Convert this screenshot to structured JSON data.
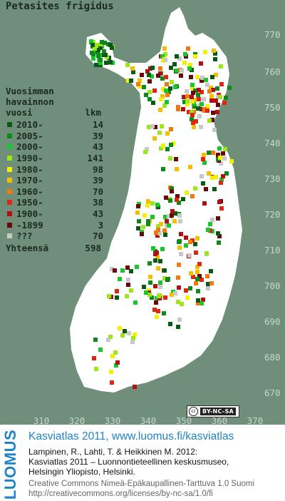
{
  "map": {
    "title": "Petasites frigidus",
    "legend": {
      "heading_line1": "Vuosimman",
      "heading_line2": "havainnon",
      "heading_col1": "vuosi",
      "heading_col2": "lkm",
      "items": [
        {
          "label": "2010-",
          "count": "14",
          "color": "#0a5a14"
        },
        {
          "label": "2005-",
          "count": "39",
          "color": "#0c8a1c"
        },
        {
          "label": "2000-",
          "count": "43",
          "color": "#18c82a"
        },
        {
          "label": "1990-",
          "count": "141",
          "color": "#9ae81a"
        },
        {
          "label": "1980-",
          "count": "98",
          "color": "#f4f000"
        },
        {
          "label": "1970-",
          "count": "39",
          "color": "#f2c000"
        },
        {
          "label": "1960-",
          "count": "70",
          "color": "#ee7a10"
        },
        {
          "label": "1950-",
          "count": "38",
          "color": "#dc2810"
        },
        {
          "label": "1900-",
          "count": "43",
          "color": "#b01010"
        },
        {
          "label": "-1899",
          "count": "3",
          "color": "#6a0808"
        },
        {
          "label": "???",
          "count": "70",
          "color": "#c8c8c8"
        }
      ],
      "total_label": "Yhteensä",
      "total_count": "598"
    },
    "y_ticks": [
      "770",
      "760",
      "750",
      "740",
      "730",
      "720",
      "710",
      "700",
      "690",
      "680",
      "670"
    ],
    "x_ticks": [
      "310",
      "320",
      "330",
      "340",
      "350",
      "360",
      "370"
    ],
    "license_badge": {
      "icon": "cc",
      "text": "BY-NC-SA"
    },
    "background_color": "#6f8f7a",
    "land_color": "#ffffff"
  },
  "footer": {
    "brand": "LUOMUS",
    "atlas_line": "Kasviatlas 2011, www.luomus.fi/kasviatlas",
    "citation_lines": [
      "Lampinen, R., Lahti, T. & Heikkinen M. 2012:",
      "Kasviatlas 2011 – Luonnontieteellinen keskusmuseo,",
      "Helsingin Yliopisto, Helsinki."
    ],
    "license_lines": [
      "Creative Commons Nimeä-Epäkaupallinen-Tarttuva 1.0 Suomi",
      "http://creativecommons.org/licenses/by-nc-sa/1.0/fi"
    ],
    "brand_color": "#1f84c7"
  }
}
